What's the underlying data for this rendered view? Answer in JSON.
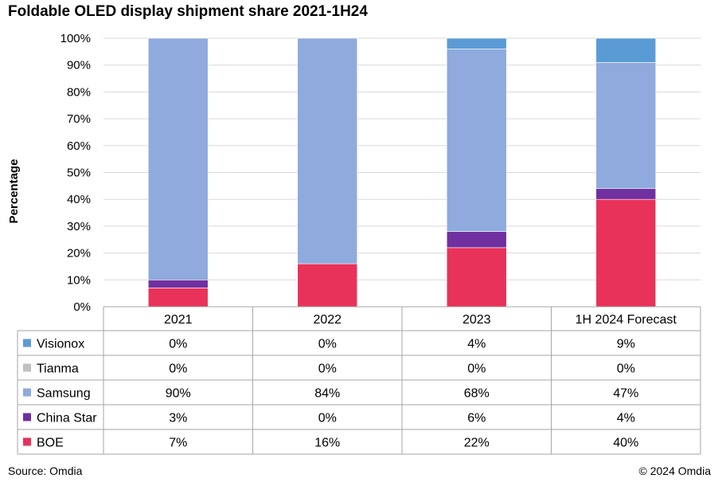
{
  "chart_data": {
    "type": "bar",
    "stacked": true,
    "title": "Foldable OLED display shipment share 2021-1H24",
    "ylabel": "Percentage",
    "xlabel": "",
    "ylim": [
      0,
      100
    ],
    "yticks": [
      "0%",
      "10%",
      "20%",
      "30%",
      "40%",
      "50%",
      "60%",
      "70%",
      "80%",
      "90%",
      "100%"
    ],
    "categories": [
      "2021",
      "2022",
      "2023",
      "1H 2024 Forecast"
    ],
    "series": [
      {
        "name": "BOE",
        "color": "#e8325a",
        "values": [
          7,
          16,
          22,
          40
        ],
        "labels": [
          "7%",
          "16%",
          "22%",
          "40%"
        ]
      },
      {
        "name": "China Star",
        "color": "#7030a0",
        "values": [
          3,
          0,
          6,
          4
        ],
        "labels": [
          "3%",
          "0%",
          "6%",
          "4%"
        ]
      },
      {
        "name": "Samsung",
        "color": "#8faadc",
        "values": [
          90,
          84,
          68,
          47
        ],
        "labels": [
          "90%",
          "84%",
          "68%",
          "47%"
        ]
      },
      {
        "name": "Tianma",
        "color": "#c0c0c0",
        "values": [
          0,
          0,
          0,
          0
        ],
        "labels": [
          "0%",
          "0%",
          "0%",
          "0%"
        ]
      },
      {
        "name": "Visionox",
        "color": "#5b9bd5",
        "values": [
          0,
          0,
          4,
          9
        ],
        "labels": [
          "0%",
          "0%",
          "4%",
          "9%"
        ]
      }
    ],
    "table_order": [
      "Visionox",
      "Tianma",
      "Samsung",
      "China Star",
      "BOE"
    ],
    "grid": true
  },
  "footer": {
    "source": "Source: Omdia",
    "copyright": "© 2024 Omdia"
  }
}
